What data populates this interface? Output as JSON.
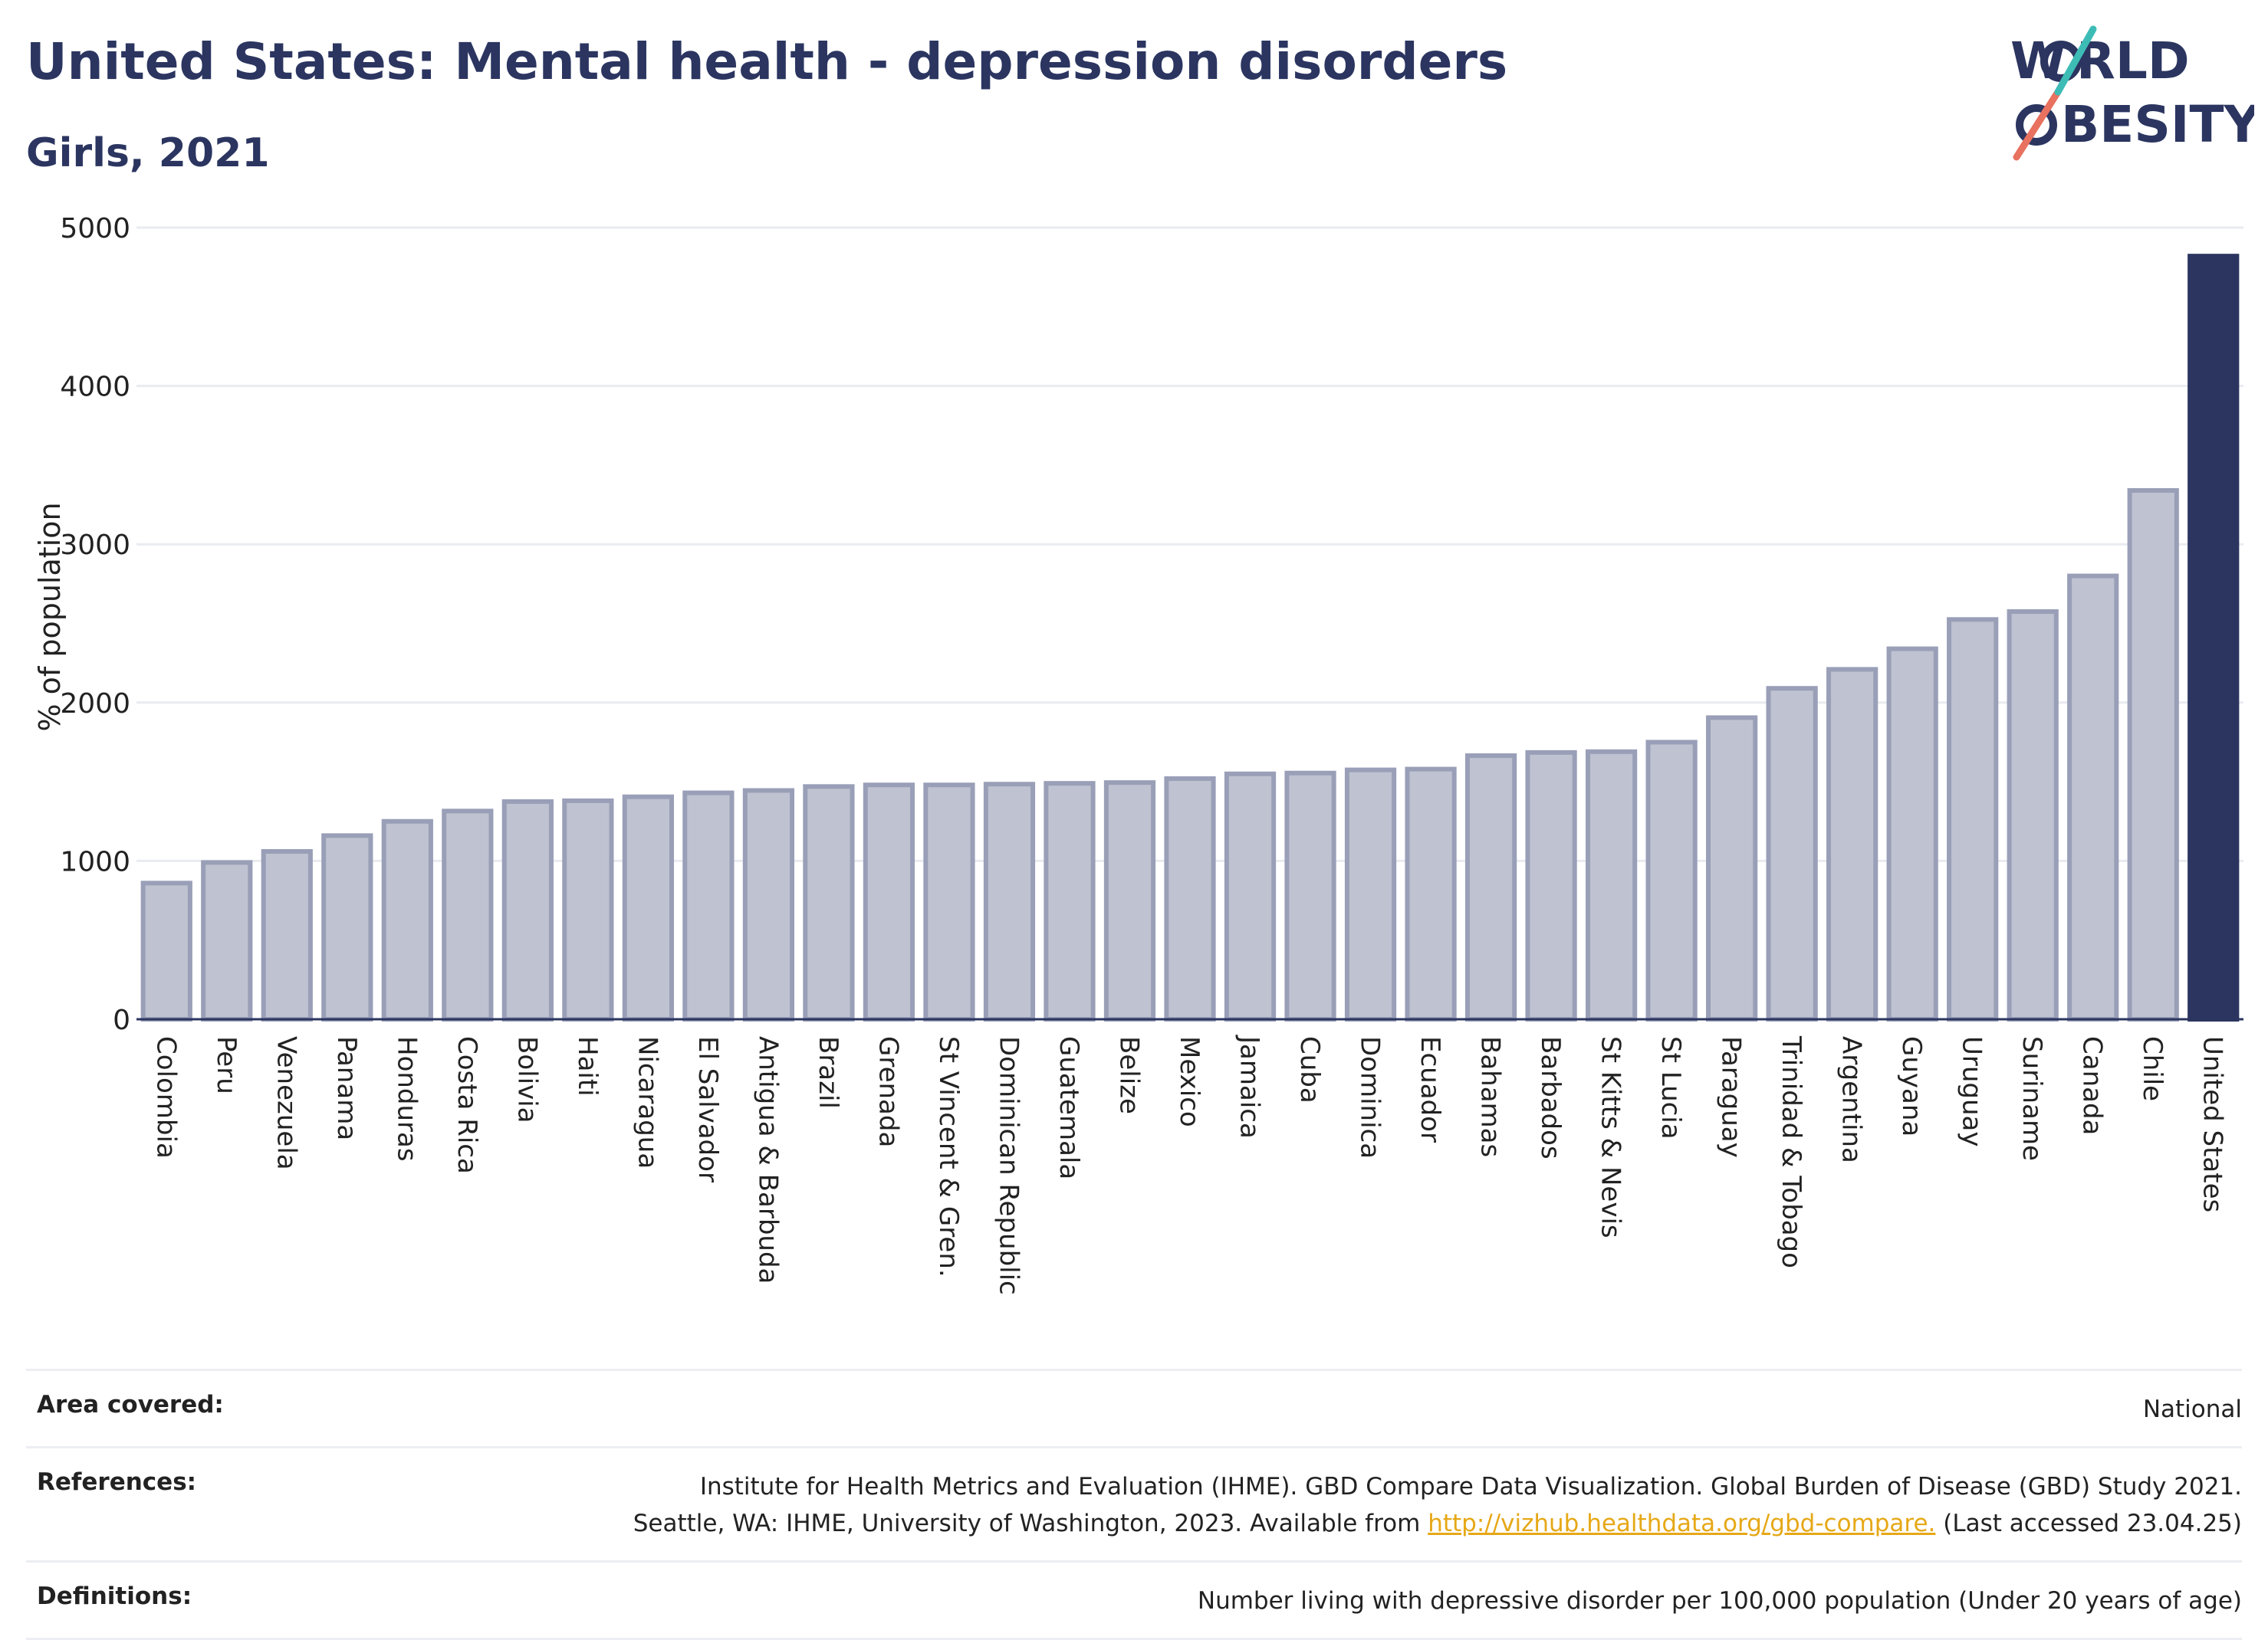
{
  "title": "United States: Mental health - depression disorders",
  "subtitle": "Girls, 2021",
  "logo": {
    "line1": "W",
    "line1b": "RLD",
    "line2": "BESITY",
    "accent_teal": "#3dbcb6",
    "accent_coral": "#e8715f"
  },
  "colors": {
    "bar": "#bfc2d0",
    "bar_edge": "#9a9fb8",
    "highlight": "#2b3560",
    "grid": "#e9ebf0"
  },
  "chart_data": {
    "type": "bar",
    "ylabel": "% of population",
    "ylim": [
      0,
      5000
    ],
    "yticks": [
      0,
      1000,
      2000,
      3000,
      4000,
      5000
    ],
    "highlight": "United States",
    "categories": [
      "Colombia",
      "Peru",
      "Venezuela",
      "Panama",
      "Honduras",
      "Costa Rica",
      "Bolivia",
      "Haiti",
      "Nicaragua",
      "El Salvador",
      "Antigua & Barbuda",
      "Brazil",
      "Grenada",
      "St Vincent & Gren.",
      "Dominican Republic",
      "Guatemala",
      "Belize",
      "Mexico",
      "Jamaica",
      "Cuba",
      "Dominica",
      "Ecuador",
      "Bahamas",
      "Barbados",
      "St Kitts & Nevis",
      "St Lucia",
      "Paraguay",
      "Trinidad & Tobago",
      "Argentina",
      "Guyana",
      "Uruguay",
      "Suriname",
      "Canada",
      "Chile",
      "United States"
    ],
    "values": [
      860,
      990,
      1060,
      1160,
      1250,
      1315,
      1375,
      1380,
      1405,
      1430,
      1445,
      1470,
      1480,
      1480,
      1485,
      1490,
      1495,
      1520,
      1550,
      1555,
      1575,
      1580,
      1665,
      1685,
      1690,
      1750,
      1905,
      2090,
      2210,
      2340,
      2525,
      2575,
      2800,
      3340,
      4820
    ]
  },
  "footer": {
    "area_label": "Area covered:",
    "area_value": "National",
    "references_label": "References:",
    "references_line1": "Institute for Health Metrics and Evaluation (IHME). GBD Compare Data Visualization. Global Burden of Disease (GBD) Study 2021.",
    "references_line2_pre": "Seattle, WA: IHME, University of Washington, 2023. Available from ",
    "references_link": "http://vizhub.healthdata.org/gbd-compare.",
    "references_line2_post": " (Last accessed 23.04.25)",
    "definitions_label": "Definitions:",
    "definitions_value": "Number living with depressive disorder per 100,000 population (Under 20 years of age)"
  }
}
